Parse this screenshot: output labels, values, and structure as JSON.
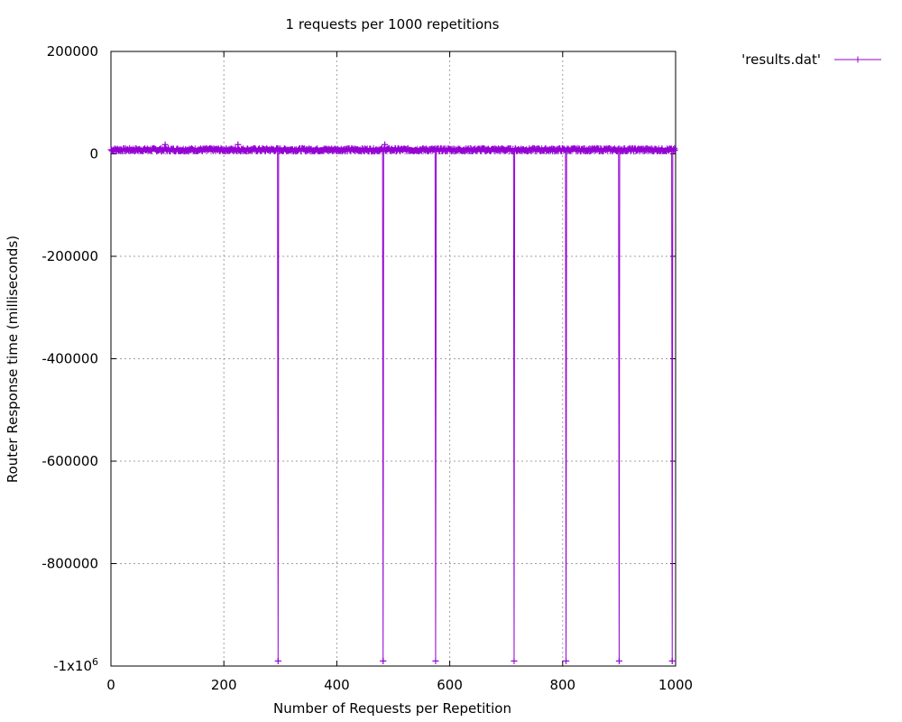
{
  "chart_data": {
    "type": "line",
    "title": "1 requests per 1000 repetitions",
    "xlabel": "Number of Requests per Repetition",
    "ylabel": "Router Response time (milliseconds)",
    "xlim": [
      0,
      1000
    ],
    "ylim": [
      -1000000,
      200000
    ],
    "grid": true,
    "legend_position": "top-right, outside plot",
    "x_ticks": [
      {
        "value": 0,
        "label": "0"
      },
      {
        "value": 200,
        "label": "200"
      },
      {
        "value": 400,
        "label": "400"
      },
      {
        "value": 600,
        "label": "600"
      },
      {
        "value": 800,
        "label": "800"
      },
      {
        "value": 1000,
        "label": "1000"
      }
    ],
    "y_ticks": [
      {
        "value": 200000,
        "label": "200000"
      },
      {
        "value": 0,
        "label": "0"
      },
      {
        "value": -200000,
        "label": "-200000"
      },
      {
        "value": -400000,
        "label": "-400000"
      },
      {
        "value": -600000,
        "label": "-600000"
      },
      {
        "value": -800000,
        "label": "-800000"
      },
      {
        "value": -1000000,
        "label": "-1x10^6"
      }
    ],
    "series": [
      {
        "name": "'results.dat'",
        "color": "#9400d3",
        "marker": "plus",
        "baseline": 8000,
        "baseline_noise": 3000,
        "x_count": 1000,
        "spikes": [
          {
            "x": 296,
            "y": -990000
          },
          {
            "x": 482,
            "y": -990000
          },
          {
            "x": 575,
            "y": -990000
          },
          {
            "x": 714,
            "y": -990000
          },
          {
            "x": 806,
            "y": -990000
          },
          {
            "x": 900,
            "y": -990000
          },
          {
            "x": 994,
            "y": -990000
          }
        ],
        "outliers": [
          {
            "x": 96,
            "y": 18000
          },
          {
            "x": 225,
            "y": 18000
          },
          {
            "x": 485,
            "y": 18000
          }
        ]
      }
    ]
  }
}
